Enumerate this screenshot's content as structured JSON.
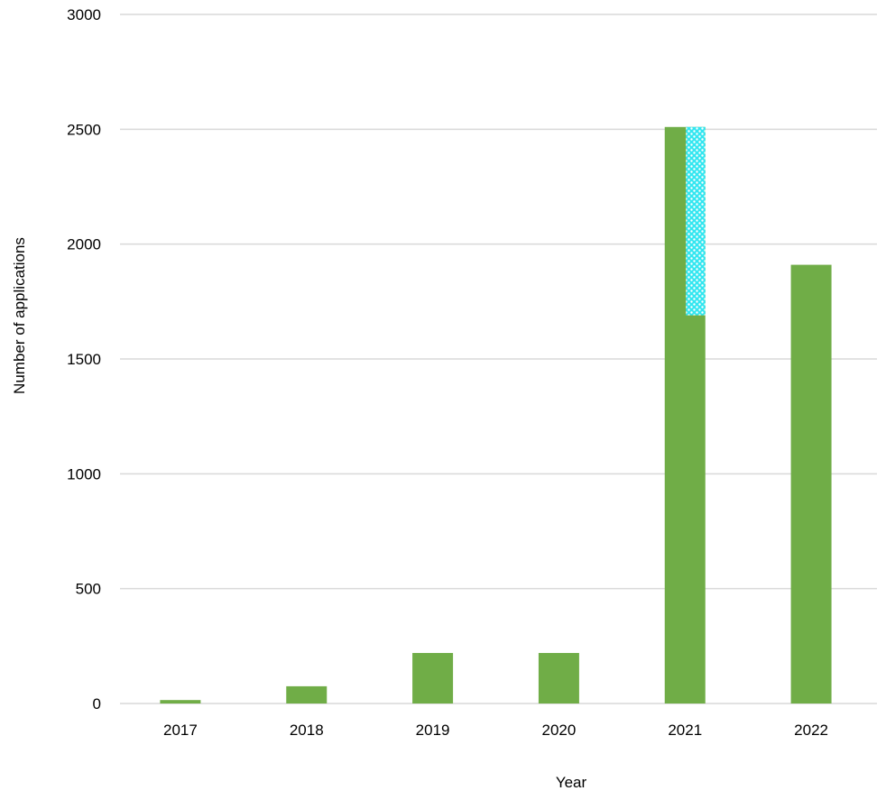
{
  "chart_data": {
    "type": "bar",
    "categories": [
      "2017",
      "2018",
      "2019",
      "2020",
      "2021",
      "2022"
    ],
    "values": [
      15,
      75,
      220,
      220,
      2510,
      1910
    ],
    "overlay": {
      "category": "2021",
      "from": 1690,
      "to": 2510,
      "pattern": "dotted"
    },
    "xlabel": "Year",
    "ylabel": "Number of applications",
    "ylim": [
      0,
      3000
    ],
    "yticks": [
      0,
      500,
      1000,
      1500,
      2000,
      2500,
      3000
    ],
    "grid": true,
    "legend": "none",
    "colors": {
      "bar": "#70ad47",
      "overlay": "#33e6f0",
      "overlay_dots": "#ffffff",
      "grid": "#d9d9d9",
      "text": "#000000"
    }
  }
}
